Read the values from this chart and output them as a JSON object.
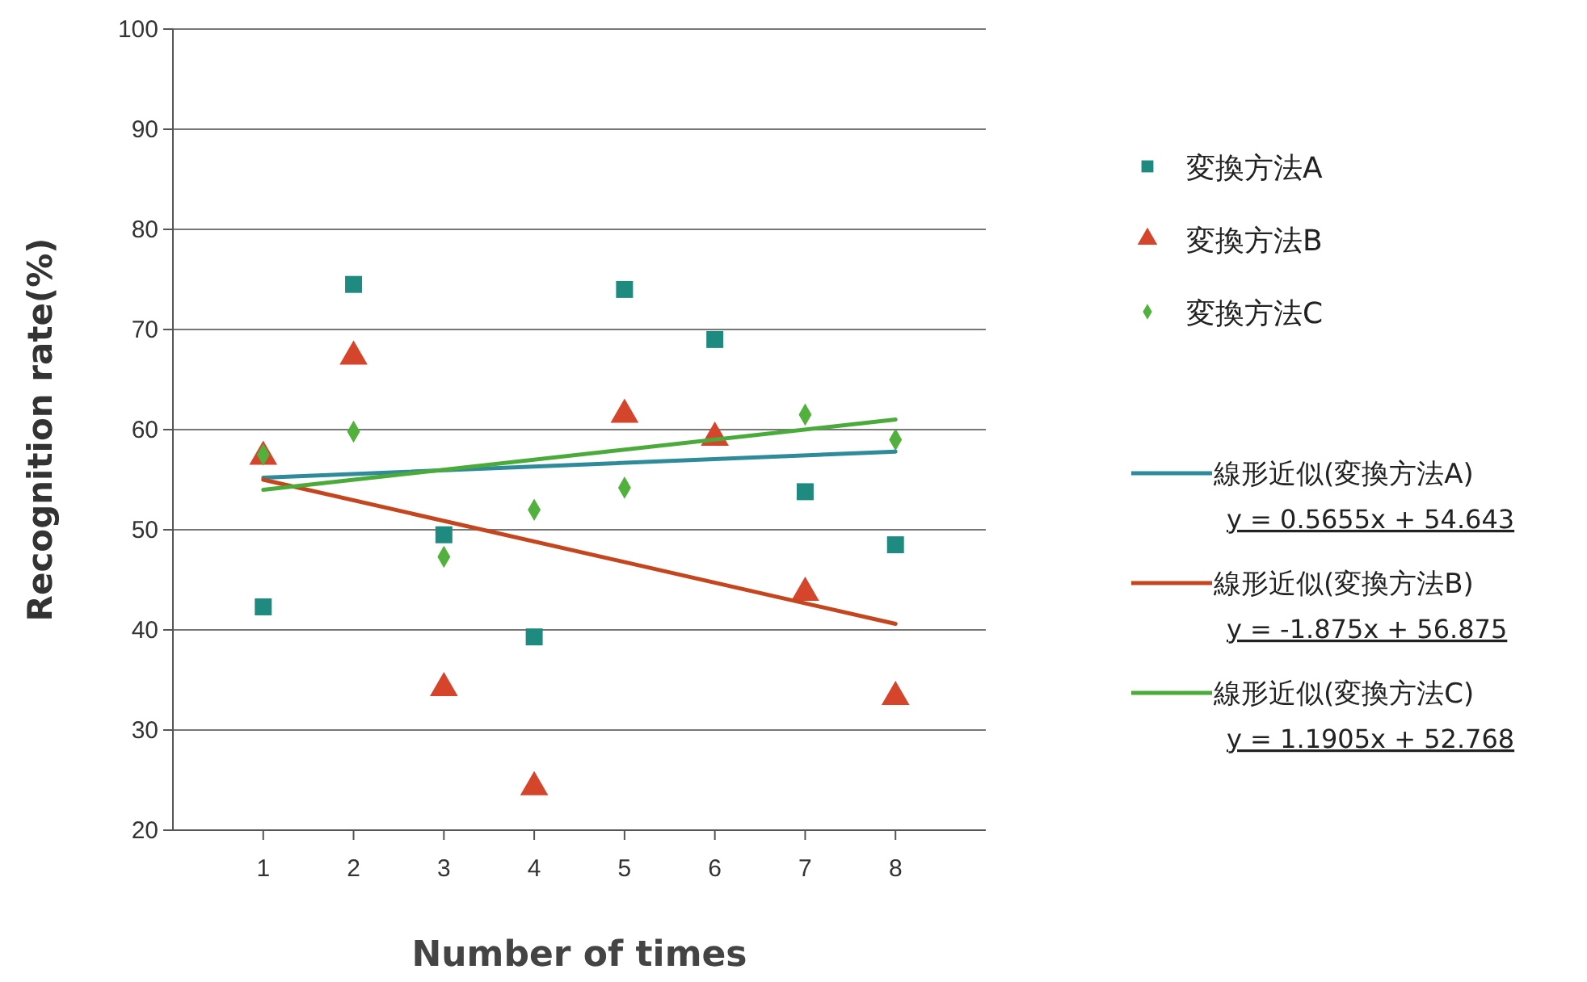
{
  "chart_data": {
    "type": "scatter",
    "xlabel": "Number of times",
    "ylabel": "Recognition rate(%)",
    "xlim": [
      0,
      9
    ],
    "xticks": [
      1,
      2,
      3,
      4,
      5,
      6,
      7,
      8
    ],
    "ylim": [
      20,
      100
    ],
    "yticks": [
      20,
      30,
      40,
      50,
      60,
      70,
      80,
      90,
      100
    ],
    "grid": "y",
    "legend": "right",
    "series": [
      {
        "name": "変換方法A",
        "color": "#1f8a80",
        "marker": "square",
        "x": [
          1,
          2,
          3,
          4,
          5,
          6,
          7,
          8
        ],
        "values": [
          42.3,
          74.5,
          49.5,
          39.3,
          74,
          69,
          53.8,
          48.5
        ]
      },
      {
        "name": "変換方法B",
        "color": "#d5452b",
        "marker": "triangle",
        "x": [
          1,
          2,
          3,
          4,
          5,
          6,
          7,
          8
        ],
        "values": [
          57.3,
          67.3,
          34.2,
          24.3,
          61.5,
          59.2,
          43.7,
          33.3
        ]
      },
      {
        "name": "変換方法C",
        "color": "#52b03c",
        "marker": "diamond",
        "x": [
          1,
          2,
          3,
          4,
          5,
          6,
          7,
          8
        ],
        "values": [
          57.5,
          59.8,
          47.3,
          52,
          54.2,
          null,
          61.5,
          59
        ]
      },
      {
        "name": "線形近似(変換方法A)",
        "type": "line",
        "color": "#2f8a99",
        "marker": "none",
        "x": [
          1,
          8
        ],
        "values": [
          55.2,
          57.8
        ]
      },
      {
        "name": "線形近似(変換方法B)",
        "type": "line",
        "color": "#c4461f",
        "marker": "none",
        "x": [
          1,
          8
        ],
        "values": [
          55,
          40.6
        ]
      },
      {
        "name": "線形近似(変換方法C)",
        "type": "line",
        "color": "#4aaa3a",
        "marker": "none",
        "x": [
          1,
          8
        ],
        "values": [
          54,
          61
        ]
      }
    ],
    "annotations": [
      "y = 0.5655x + 54.643",
      "y = -1.875x + 56.875",
      "y = 1.1905x + 52.768"
    ]
  }
}
